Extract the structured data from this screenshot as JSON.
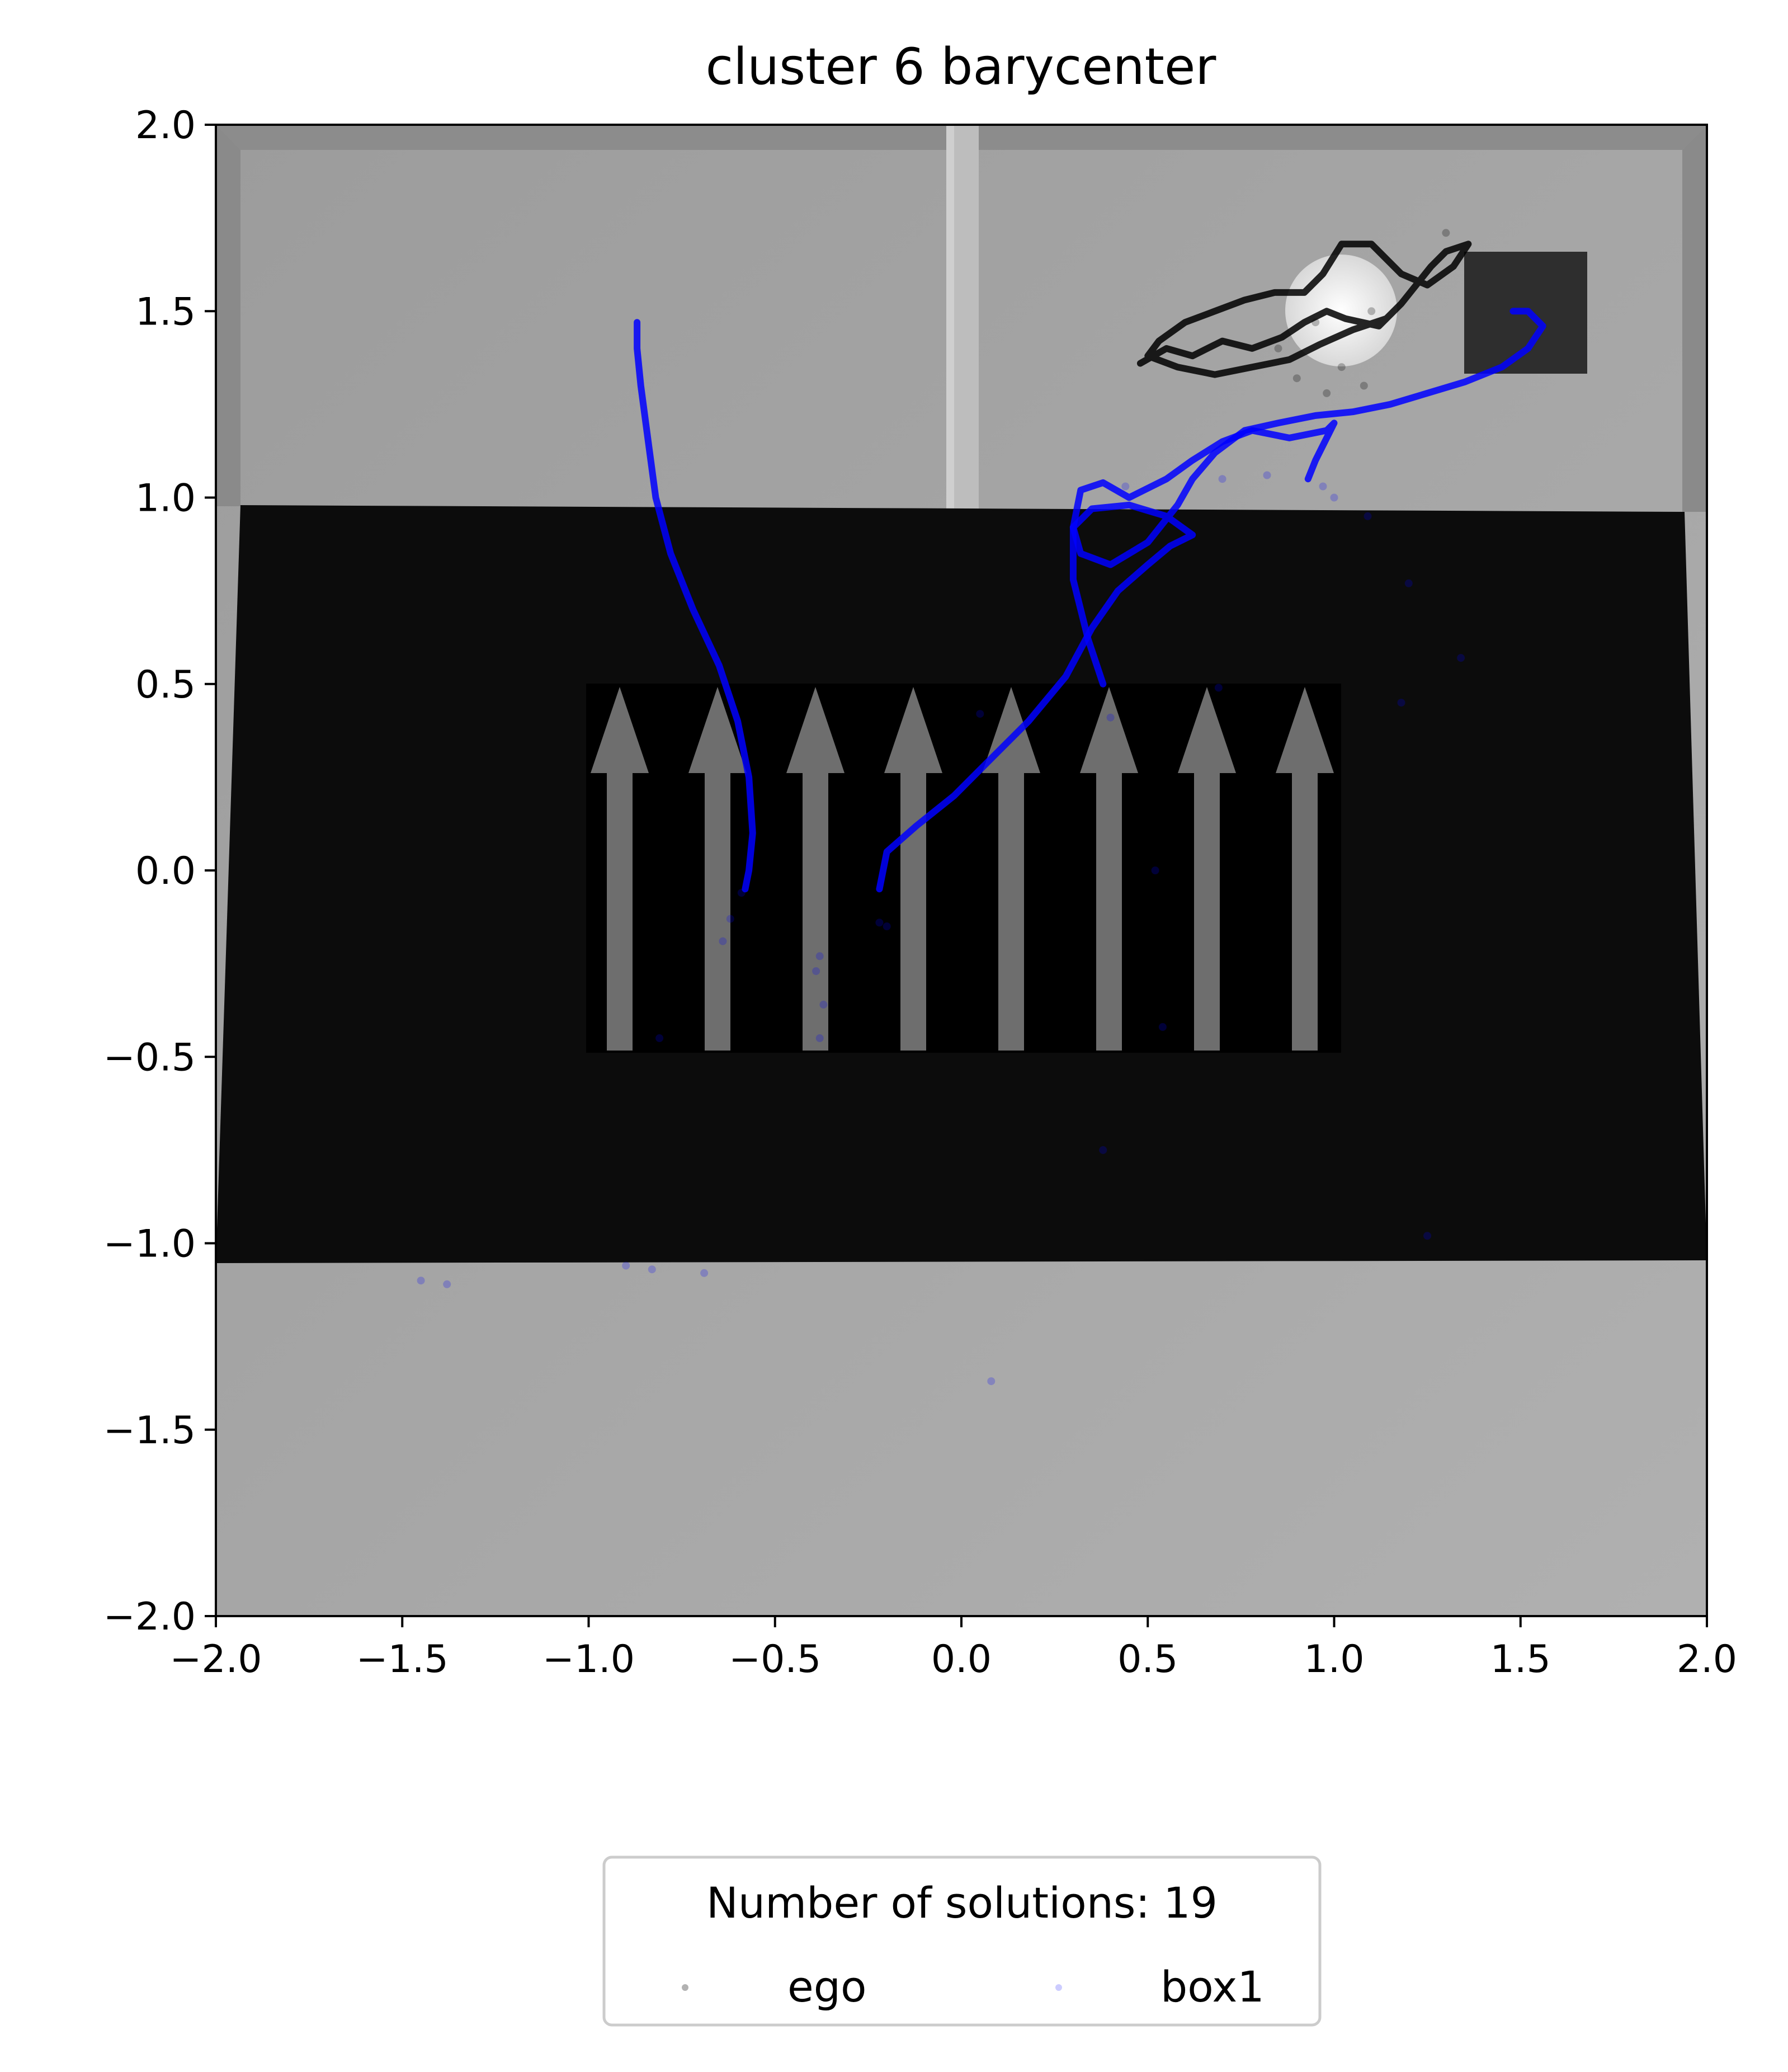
{
  "chart_data": {
    "type": "scatter",
    "title": "cluster 6 barycenter",
    "xlabel": "",
    "ylabel": "",
    "xlim": [
      -2.0,
      2.0
    ],
    "ylim": [
      -2.0,
      2.0
    ],
    "xticks": [
      "−2.0",
      "−1.5",
      "−1.0",
      "−0.5",
      "0.0",
      "0.5",
      "1.0",
      "1.5",
      "2.0"
    ],
    "yticks": [
      "2.0",
      "1.5",
      "1.0",
      "0.5",
      "0.0",
      "−0.5",
      "−1.0",
      "−1.5",
      "−2.0"
    ],
    "grid": false,
    "legend": {
      "title": "Number of solutions: 19",
      "placement": "below",
      "entries": [
        "ego",
        "box1"
      ]
    },
    "series": [
      {
        "name": "ego",
        "color": "#000000",
        "trajectory": [
          [
            0.48,
            1.36
          ],
          [
            0.55,
            1.4
          ],
          [
            0.62,
            1.38
          ],
          [
            0.7,
            1.42
          ],
          [
            0.78,
            1.4
          ],
          [
            0.86,
            1.43
          ],
          [
            0.92,
            1.47
          ],
          [
            0.98,
            1.5
          ],
          [
            1.03,
            1.48
          ],
          [
            1.12,
            1.46
          ],
          [
            1.18,
            1.52
          ],
          [
            1.22,
            1.57
          ],
          [
            1.26,
            1.62
          ],
          [
            1.3,
            1.66
          ],
          [
            1.36,
            1.68
          ],
          [
            1.32,
            1.62
          ],
          [
            1.25,
            1.57
          ],
          [
            1.18,
            1.6
          ],
          [
            1.1,
            1.68
          ],
          [
            1.02,
            1.68
          ],
          [
            0.97,
            1.6
          ],
          [
            0.92,
            1.55
          ],
          [
            0.84,
            1.55
          ],
          [
            0.76,
            1.53
          ],
          [
            0.68,
            1.5
          ],
          [
            0.6,
            1.47
          ],
          [
            0.53,
            1.42
          ],
          [
            0.5,
            1.38
          ],
          [
            0.58,
            1.35
          ],
          [
            0.68,
            1.33
          ],
          [
            0.78,
            1.35
          ],
          [
            0.88,
            1.37
          ],
          [
            0.96,
            1.41
          ],
          [
            1.05,
            1.45
          ],
          [
            1.14,
            1.48
          ]
        ],
        "scatter_points": [
          [
            1.3,
            1.71
          ],
          [
            1.1,
            1.5
          ],
          [
            0.95,
            1.47
          ],
          [
            1.02,
            1.35
          ],
          [
            0.9,
            1.32
          ],
          [
            0.98,
            1.28
          ],
          [
            1.08,
            1.3
          ],
          [
            0.85,
            1.4
          ]
        ]
      },
      {
        "name": "box1",
        "color": "#0000ff",
        "trajectory_1": [
          [
            -0.87,
            1.47
          ],
          [
            -0.87,
            1.4
          ],
          [
            -0.86,
            1.3
          ],
          [
            -0.84,
            1.15
          ],
          [
            -0.82,
            1.0
          ],
          [
            -0.78,
            0.85
          ],
          [
            -0.72,
            0.7
          ],
          [
            -0.65,
            0.55
          ],
          [
            -0.6,
            0.4
          ],
          [
            -0.57,
            0.25
          ],
          [
            -0.56,
            0.1
          ],
          [
            -0.57,
            0.0
          ],
          [
            -0.58,
            -0.05
          ]
        ],
        "trajectory_2": [
          [
            -0.22,
            -0.05
          ],
          [
            -0.2,
            0.05
          ],
          [
            -0.12,
            0.12
          ],
          [
            -0.02,
            0.2
          ],
          [
            0.08,
            0.3
          ],
          [
            0.18,
            0.4
          ],
          [
            0.28,
            0.52
          ],
          [
            0.35,
            0.65
          ],
          [
            0.42,
            0.75
          ],
          [
            0.5,
            0.82
          ],
          [
            0.56,
            0.87
          ],
          [
            0.62,
            0.9
          ],
          [
            0.55,
            0.95
          ],
          [
            0.45,
            0.98
          ],
          [
            0.35,
            0.97
          ],
          [
            0.3,
            0.92
          ],
          [
            0.32,
            0.85
          ],
          [
            0.4,
            0.82
          ],
          [
            0.5,
            0.88
          ],
          [
            0.58,
            0.98
          ],
          [
            0.62,
            1.05
          ],
          [
            0.68,
            1.12
          ],
          [
            0.76,
            1.18
          ],
          [
            0.85,
            1.2
          ],
          [
            0.95,
            1.22
          ],
          [
            1.05,
            1.23
          ],
          [
            1.15,
            1.25
          ],
          [
            1.25,
            1.28
          ],
          [
            1.35,
            1.31
          ],
          [
            1.45,
            1.35
          ],
          [
            1.52,
            1.4
          ],
          [
            1.56,
            1.46
          ],
          [
            1.52,
            1.5
          ],
          [
            1.48,
            1.5
          ]
        ],
        "trajectory_3": [
          [
            0.38,
            0.5
          ],
          [
            0.34,
            0.62
          ],
          [
            0.3,
            0.78
          ],
          [
            0.3,
            0.92
          ],
          [
            0.32,
            1.02
          ],
          [
            0.38,
            1.04
          ],
          [
            0.45,
            1.0
          ],
          [
            0.55,
            1.05
          ],
          [
            0.62,
            1.1
          ],
          [
            0.7,
            1.15
          ],
          [
            0.78,
            1.18
          ],
          [
            0.88,
            1.16
          ],
          [
            0.98,
            1.18
          ],
          [
            1.0,
            1.2
          ],
          [
            0.95,
            1.1
          ],
          [
            0.93,
            1.05
          ]
        ],
        "scatter_points": [
          [
            -1.45,
            -1.1
          ],
          [
            -1.38,
            -1.11
          ],
          [
            -0.9,
            -1.06
          ],
          [
            -0.83,
            -1.07
          ],
          [
            -0.69,
            -1.08
          ],
          [
            0.08,
            -1.37
          ],
          [
            1.25,
            -0.98
          ],
          [
            0.38,
            -0.75
          ],
          [
            -0.81,
            -0.45
          ],
          [
            -0.38,
            -0.45
          ],
          [
            -0.37,
            -0.36
          ],
          [
            -0.38,
            -0.23
          ],
          [
            -0.39,
            -0.27
          ],
          [
            -0.64,
            -0.19
          ],
          [
            -0.62,
            -0.13
          ],
          [
            -0.59,
            -0.06
          ],
          [
            -0.22,
            -0.14
          ],
          [
            -0.2,
            -0.15
          ],
          [
            0.52,
            0.0
          ],
          [
            0.54,
            -0.42
          ],
          [
            0.4,
            0.41
          ],
          [
            0.05,
            0.42
          ],
          [
            0.69,
            0.49
          ],
          [
            1.18,
            0.45
          ],
          [
            1.34,
            0.57
          ],
          [
            1.2,
            0.77
          ],
          [
            1.09,
            0.95
          ],
          [
            0.7,
            1.05
          ],
          [
            0.82,
            1.06
          ],
          [
            0.97,
            1.03
          ],
          [
            1.0,
            1.0
          ],
          [
            0.44,
            1.03
          ]
        ]
      }
    ]
  },
  "scene": {
    "wall_color": "#a8a8a8",
    "floor_mat_color": "#0a0a0a",
    "arrow_color": "#6e6e6e",
    "box_color": "#2e2e2e"
  }
}
